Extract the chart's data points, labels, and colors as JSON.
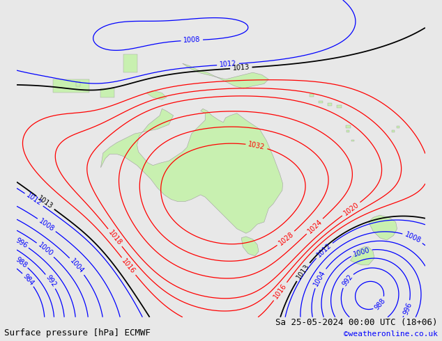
{
  "title_left": "Surface pressure [hPa] ECMWF",
  "title_right": "Sa 25-05-2024 00:00 UTC (18+06)",
  "credit": "©weatheronline.co.uk",
  "bg_color": "#e8e8e8",
  "land_color": "#c8f0b0",
  "land_edge_color": "#a0a0a0",
  "isobar_levels_red": [
    1016,
    1018,
    1020,
    1024,
    1028,
    1032
  ],
  "isobar_levels_blue": [
    984,
    988,
    992,
    996,
    1000,
    1004,
    1008,
    1012
  ],
  "isobar_level_black": 1013,
  "font_size_labels": 7,
  "font_size_title": 9,
  "font_size_credit": 8,
  "lon_min": 95,
  "lon_max": 185,
  "lat_min": -58,
  "lat_max": 12
}
